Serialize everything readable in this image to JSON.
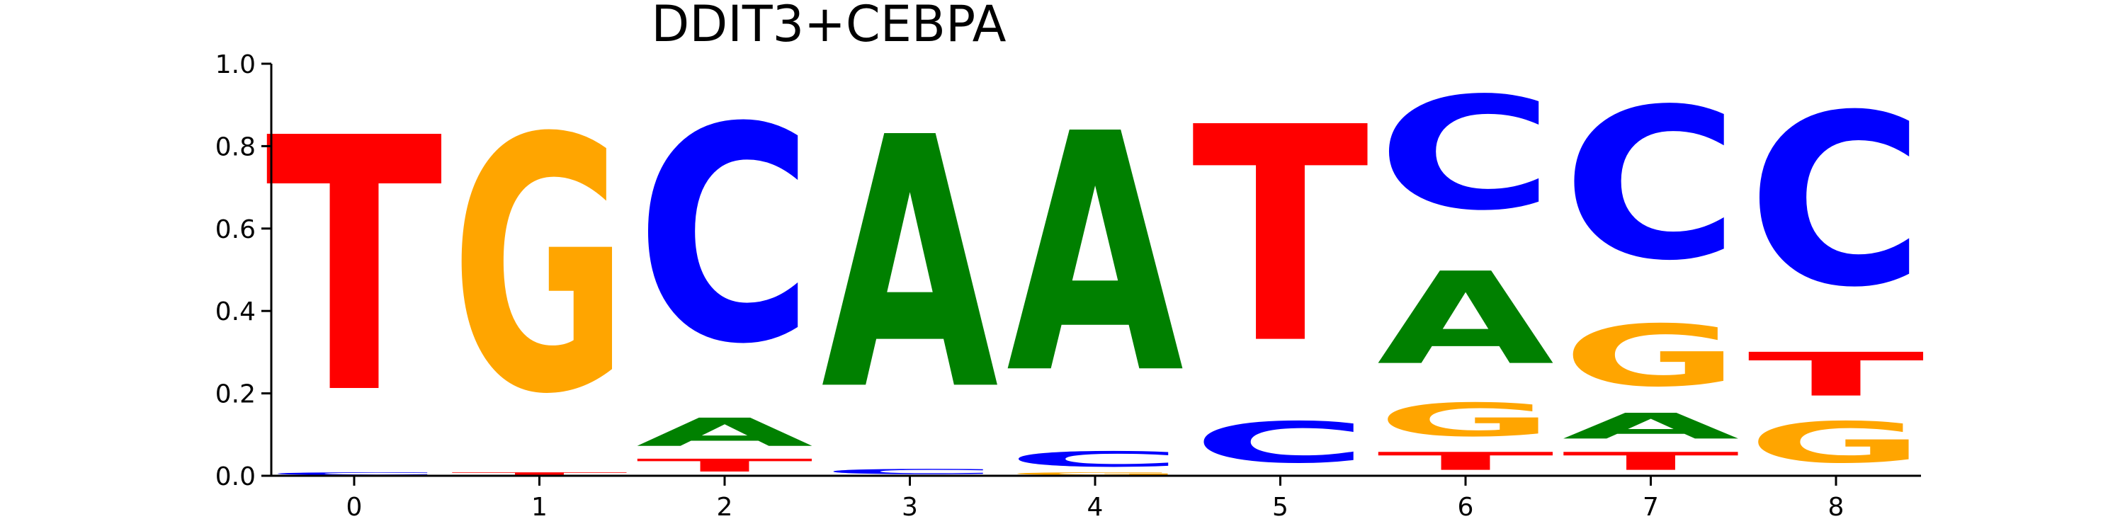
{
  "chart_data": {
    "type": "sequence-logo",
    "title": "DDIT3+CEBPA",
    "xlabel": "",
    "ylabel": "",
    "ylim": [
      0,
      1.0
    ],
    "yticks": [
      "0.0",
      "0.2",
      "0.4",
      "0.6",
      "0.8",
      "1.0"
    ],
    "xticks": [
      "0",
      "1",
      "2",
      "3",
      "4",
      "5",
      "6",
      "7",
      "8"
    ],
    "grid": false,
    "colors": {
      "A": "#008000",
      "C": "#0000ff",
      "G": "#ffa500",
      "T": "#ff0000"
    },
    "positions": [
      {
        "position": "0",
        "letters": [
          {
            "base": "C",
            "value": 0.01
          },
          {
            "base": "T",
            "value": 0.99
          }
        ]
      },
      {
        "position": "1",
        "letters": [
          {
            "base": "T",
            "value": 0.01
          },
          {
            "base": "G",
            "value": 0.99
          }
        ]
      },
      {
        "position": "2",
        "letters": [
          {
            "base": "T",
            "value": 0.05
          },
          {
            "base": "A",
            "value": 0.11
          },
          {
            "base": "C",
            "value": 0.84
          }
        ]
      },
      {
        "position": "3",
        "letters": [
          {
            "base": "C",
            "value": 0.02
          },
          {
            "base": "A",
            "value": 0.98
          }
        ]
      },
      {
        "position": "4",
        "letters": [
          {
            "base": "G",
            "value": 0.01
          },
          {
            "base": "C",
            "value": 0.06
          },
          {
            "base": "A",
            "value": 0.93
          }
        ]
      },
      {
        "position": "5",
        "letters": [
          {
            "base": "C",
            "value": 0.16
          },
          {
            "base": "T",
            "value": 0.84
          }
        ]
      },
      {
        "position": "6",
        "letters": [
          {
            "base": "T",
            "value": 0.07
          },
          {
            "base": "G",
            "value": 0.13
          },
          {
            "base": "A",
            "value": 0.36
          },
          {
            "base": "C",
            "value": 0.44
          }
        ]
      },
      {
        "position": "7",
        "letters": [
          {
            "base": "T",
            "value": 0.07
          },
          {
            "base": "A",
            "value": 0.1
          },
          {
            "base": "G",
            "value": 0.24
          },
          {
            "base": "C",
            "value": 0.59
          }
        ]
      },
      {
        "position": "8",
        "letters": [
          {
            "base": "G",
            "value": 0.16
          },
          {
            "base": "T",
            "value": 0.17
          },
          {
            "base": "C",
            "value": 0.67
          }
        ]
      }
    ]
  }
}
